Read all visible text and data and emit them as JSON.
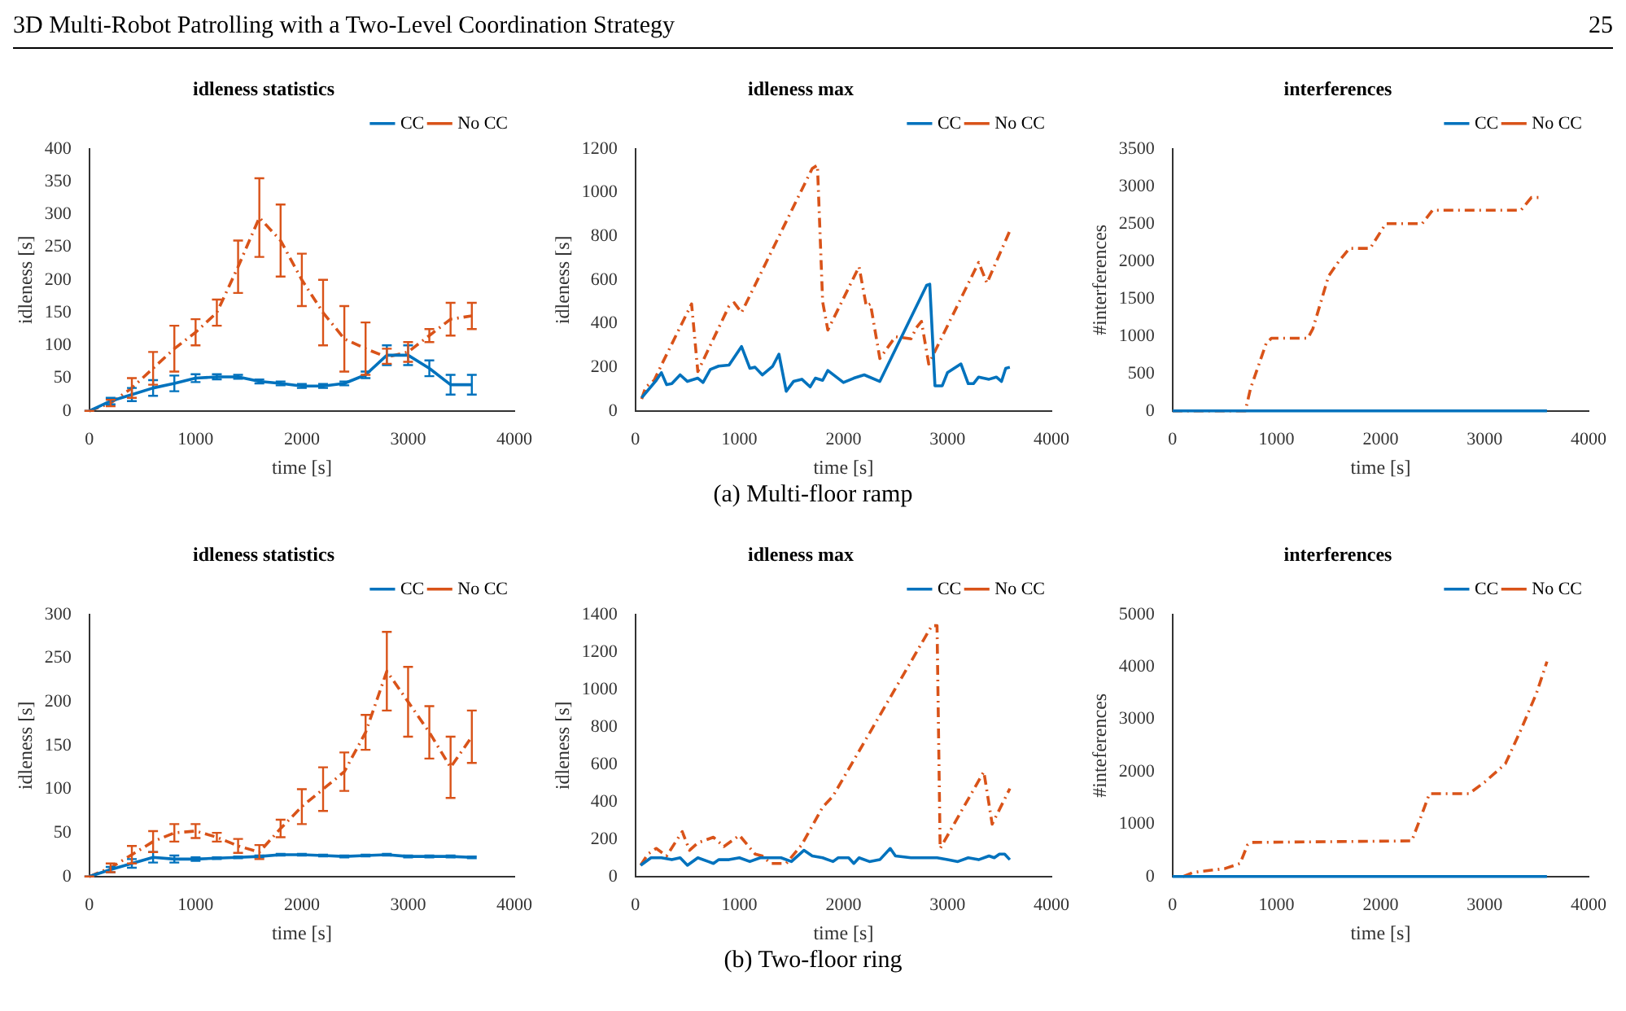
{
  "chart_data": [
    {
      "type": "line",
      "title": "idleness statistics",
      "xlabel": "time [s]",
      "ylabel": "idleness [s]",
      "annotations": [
        "3D Multi-Robot Patrolling with a Two-Level Coordination Strategy",
        "25"
      ],
      "x": [
        0,
        200,
        400,
        600,
        800,
        1000,
        1200,
        1400,
        1600,
        1800,
        2000,
        2200,
        2400,
        2600,
        2800,
        3000,
        3200,
        3400,
        3600
      ],
      "series": [
        {
          "name": "CC",
          "color": "#0072bd",
          "line_style": "solid",
          "values": [
            0,
            15,
            25,
            35,
            42,
            50,
            52,
            52,
            45,
            42,
            38,
            38,
            42,
            55,
            85,
            85,
            65,
            40,
            40
          ],
          "errors": [
            0,
            5,
            10,
            12,
            12,
            6,
            4,
            3,
            3,
            3,
            3,
            3,
            3,
            5,
            15,
            15,
            12,
            15,
            15
          ]
        },
        {
          "name": "No CC",
          "color": "#d95319",
          "line_style": "dashed",
          "values": [
            0,
            12,
            35,
            65,
            95,
            120,
            150,
            220,
            295,
            260,
            200,
            150,
            110,
            95,
            82,
            90,
            115,
            140,
            145
          ],
          "errors": [
            0,
            5,
            15,
            25,
            35,
            20,
            20,
            40,
            60,
            55,
            40,
            50,
            50,
            40,
            [
              72,
              95
            ],
            15,
            10,
            25,
            20
          ]
        }
      ],
      "xlim": [
        0,
        4000
      ],
      "xticks": [
        0,
        1000,
        2000,
        3000,
        4000
      ],
      "ylim": [
        0,
        400
      ],
      "yticks": [
        0,
        50,
        100,
        150,
        200,
        250,
        300,
        350,
        400
      ],
      "grid": false,
      "legend": "top right"
    },
    {
      "type": "line",
      "title": "idleness max",
      "xlabel": "time [s]",
      "ylabel": "idleness [s]",
      "annotations": [
        "(a) Multi-floor ramp"
      ],
      "series": [
        {
          "name": "CC",
          "color": "#0072bd",
          "line_style": "solid",
          "x": [
            60,
            200,
            250,
            300,
            350,
            430,
            500,
            600,
            650,
            720,
            800,
            900,
            1020,
            1100,
            1150,
            1220,
            1320,
            1380,
            1450,
            1520,
            1600,
            1680,
            1730,
            1800,
            1850,
            2000,
            2100,
            2200,
            2350,
            2800,
            2830,
            2880,
            2950,
            3000,
            3130,
            3200,
            3250,
            3300,
            3400,
            3470,
            3520,
            3560,
            3600
          ],
          "values": [
            60,
            140,
            175,
            120,
            125,
            165,
            135,
            150,
            130,
            190,
            205,
            210,
            295,
            195,
            200,
            165,
            205,
            260,
            90,
            135,
            145,
            110,
            150,
            140,
            185,
            130,
            150,
            165,
            135,
            575,
            580,
            115,
            115,
            175,
            215,
            125,
            125,
            155,
            145,
            155,
            135,
            195,
            200
          ]
        },
        {
          "name": "No CC",
          "color": "#d95319",
          "line_style": "dashed",
          "x": [
            60,
            100,
            180,
            250,
            540,
            600,
            900,
            950,
            1020,
            1700,
            1750,
            1800,
            1850,
            2150,
            2220,
            2260,
            2350,
            2500,
            2650,
            2700,
            2750,
            2820,
            3300,
            3380,
            3600
          ],
          "values": [
            55,
            110,
            140,
            210,
            490,
            180,
            480,
            495,
            450,
            1110,
            1125,
            500,
            370,
            660,
            480,
            490,
            240,
            340,
            330,
            380,
            410,
            215,
            680,
            585,
            825
          ]
        }
      ],
      "xlim": [
        0,
        4000
      ],
      "xticks": [
        0,
        1000,
        2000,
        3000,
        4000
      ],
      "ylim": [
        0,
        1200
      ],
      "yticks": [
        0,
        200,
        400,
        600,
        800,
        1000,
        1200
      ],
      "grid": false,
      "legend": "top right"
    },
    {
      "type": "line",
      "title": "interferences",
      "xlabel": "time [s]",
      "ylabel": "#interferences",
      "series": [
        {
          "name": "CC",
          "color": "#0072bd",
          "line_style": "solid",
          "x": [
            0,
            3600
          ],
          "values": [
            0,
            0
          ]
        },
        {
          "name": "No CC",
          "color": "#d95319",
          "line_style": "dashed",
          "x": [
            0,
            700,
            750,
            900,
            950,
            1300,
            1350,
            1500,
            1600,
            1700,
            1900,
            2050,
            2400,
            2500,
            3350,
            3450,
            3550
          ],
          "values": [
            0,
            0,
            300,
            900,
            970,
            970,
            1100,
            1800,
            2000,
            2170,
            2170,
            2500,
            2500,
            2680,
            2680,
            2850,
            2850
          ]
        }
      ],
      "xlim": [
        0,
        4000
      ],
      "xticks": [
        0,
        1000,
        2000,
        3000,
        4000
      ],
      "ylim": [
        0,
        3500
      ],
      "yticks": [
        0,
        500,
        1000,
        1500,
        2000,
        2500,
        3000,
        3500
      ],
      "grid": false,
      "legend": "top right"
    },
    {
      "type": "line",
      "title": "idleness statistics",
      "xlabel": "time [s]",
      "ylabel": "idleness [s]",
      "x": [
        0,
        200,
        400,
        600,
        800,
        1000,
        1200,
        1400,
        1600,
        1800,
        2000,
        2200,
        2400,
        2600,
        2800,
        3000,
        3200,
        3400,
        3600
      ],
      "series": [
        {
          "name": "CC",
          "color": "#0072bd",
          "line_style": "solid",
          "values": [
            0,
            8,
            15,
            22,
            20,
            20,
            21,
            22,
            23,
            25,
            25,
            24,
            23,
            24,
            25,
            23,
            23,
            23,
            22
          ],
          "errors": [
            0,
            3,
            5,
            6,
            4,
            2,
            1,
            1,
            1,
            1,
            1,
            1,
            1,
            1,
            1,
            1,
            1,
            1,
            1
          ]
        },
        {
          "name": "No CC",
          "color": "#d95319",
          "line_style": "dashed",
          "values": [
            0,
            10,
            25,
            40,
            50,
            52,
            45,
            35,
            28,
            55,
            80,
            100,
            120,
            165,
            235,
            200,
            165,
            125,
            160
          ],
          "errors": [
            0,
            5,
            10,
            12,
            10,
            8,
            5,
            8,
            8,
            10,
            20,
            25,
            22,
            20,
            45,
            40,
            30,
            35,
            30
          ]
        }
      ],
      "xlim": [
        0,
        4000
      ],
      "xticks": [
        0,
        1000,
        2000,
        3000,
        4000
      ],
      "ylim": [
        0,
        300
      ],
      "yticks": [
        0,
        50,
        100,
        150,
        200,
        250,
        300
      ],
      "grid": false,
      "legend": "top right"
    },
    {
      "type": "line",
      "title": "idleness max",
      "xlabel": "time [s]",
      "ylabel": "idleness [s]",
      "annotations": [
        "(b) Two-floor ring"
      ],
      "series": [
        {
          "name": "CC",
          "color": "#0072bd",
          "line_style": "solid",
          "x": [
            50,
            150,
            250,
            350,
            430,
            500,
            600,
            700,
            750,
            800,
            900,
            1000,
            1100,
            1200,
            1300,
            1400,
            1500,
            1620,
            1700,
            1800,
            1900,
            1950,
            2050,
            2100,
            2150,
            2250,
            2350,
            2450,
            2500,
            2650,
            2800,
            2900,
            3000,
            3100,
            3200,
            3300,
            3400,
            3450,
            3500,
            3550,
            3600
          ],
          "values": [
            60,
            100,
            100,
            90,
            100,
            60,
            100,
            80,
            70,
            90,
            90,
            100,
            80,
            100,
            100,
            100,
            80,
            140,
            110,
            100,
            80,
            100,
            100,
            70,
            100,
            80,
            90,
            150,
            110,
            100,
            100,
            100,
            90,
            80,
            100,
            90,
            110,
            100,
            120,
            120,
            90
          ]
        },
        {
          "name": "No CC",
          "color": "#d95319",
          "line_style": "dashed",
          "x": [
            50,
            120,
            200,
            300,
            450,
            520,
            600,
            750,
            850,
            1000,
            1150,
            1220,
            1300,
            1450,
            1600,
            1800,
            1900,
            2850,
            2900,
            2930,
            3350,
            3430,
            3600
          ],
          "values": [
            60,
            120,
            150,
            110,
            240,
            140,
            180,
            210,
            160,
            220,
            120,
            110,
            70,
            70,
            170,
            370,
            430,
            1340,
            1340,
            150,
            560,
            280,
            470
          ]
        }
      ],
      "xlim": [
        0,
        4000
      ],
      "xticks": [
        0,
        1000,
        2000,
        3000,
        4000
      ],
      "ylim": [
        0,
        1400
      ],
      "yticks": [
        0,
        200,
        400,
        600,
        800,
        1000,
        1200,
        1400
      ],
      "grid": false,
      "legend": "top right"
    },
    {
      "type": "line",
      "title": "interferences",
      "xlabel": "time [s]",
      "ylabel": "#inteferences",
      "series": [
        {
          "name": "CC",
          "color": "#0072bd",
          "line_style": "solid",
          "x": [
            0,
            3600
          ],
          "values": [
            0,
            0
          ]
        },
        {
          "name": "No CC",
          "color": "#d95319",
          "line_style": "dashed",
          "x": [
            100,
            200,
            500,
            650,
            720,
            750,
            2300,
            2400,
            2470,
            2850,
            3000,
            3200,
            3350,
            3500,
            3600
          ],
          "values": [
            0,
            80,
            150,
            250,
            600,
            650,
            680,
            1200,
            1580,
            1580,
            1800,
            2150,
            2800,
            3500,
            4100
          ]
        }
      ],
      "xlim": [
        0,
        4000
      ],
      "xticks": [
        0,
        1000,
        2000,
        3000,
        4000
      ],
      "ylim": [
        0,
        5000
      ],
      "yticks": [
        0,
        1000,
        2000,
        3000,
        4000,
        5000
      ],
      "grid": false,
      "legend": "top right"
    }
  ]
}
